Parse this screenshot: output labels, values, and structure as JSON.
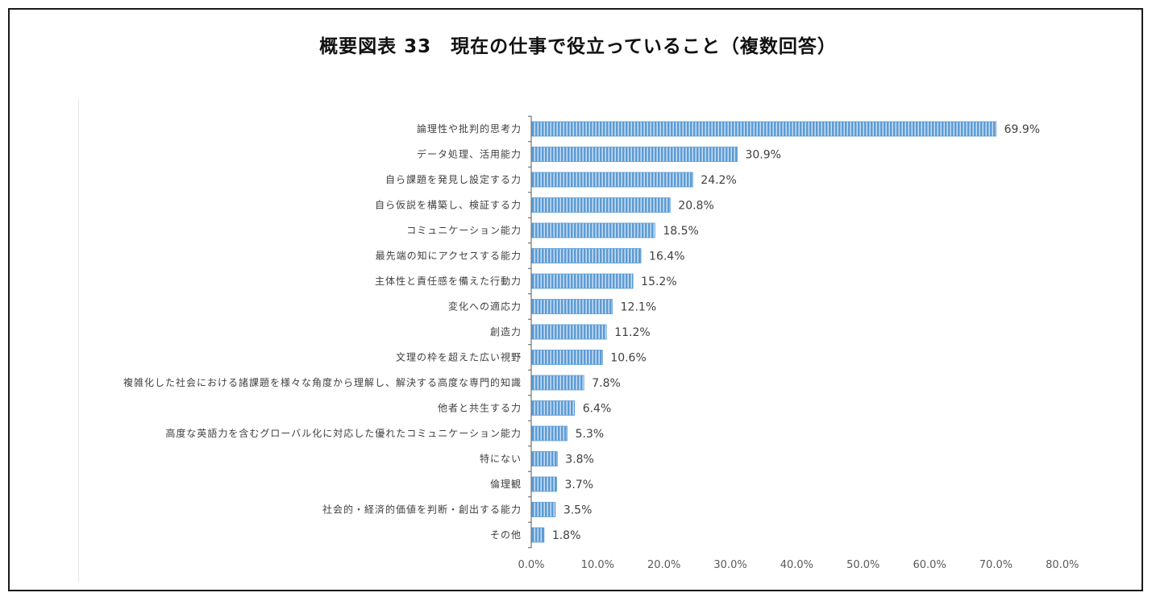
{
  "title": "概要図表 33　現在の仕事で役立っていること（複数回答）",
  "colors": {
    "bar": "#5b9bd5",
    "bar_stripe": "#ffffff",
    "axis": "#595959"
  },
  "chart_data": {
    "type": "bar",
    "orientation": "horizontal",
    "title": "概要図表 33　現在の仕事で役立っていること（複数回答）",
    "xlabel": "",
    "ylabel": "",
    "xlim": [
      0,
      80
    ],
    "xticks": [
      "0.0%",
      "10.0%",
      "20.0%",
      "30.0%",
      "40.0%",
      "50.0%",
      "60.0%",
      "70.0%",
      "80.0%"
    ],
    "grid": false,
    "categories": [
      "論理性や批判的思考力",
      "データ処理、活用能力",
      "自ら課題を発見し設定する力",
      "自ら仮説を構築し、検証する力",
      "コミュニケーション能力",
      "最先端の知にアクセスする能力",
      "主体性と責任感を備えた行動力",
      "変化への適応力",
      "創造力",
      "文理の枠を超えた広い視野",
      "複雑化した社会における諸課題を様々な角度から理解し、解決する高度な専門的知識",
      "他者と共生する力",
      "高度な英語力を含むグローバル化に対応した優れたコミュニケーション能力",
      "特にない",
      "倫理観",
      "社会的・経済的価値を判断・創出する能力",
      "その他"
    ],
    "values": [
      69.9,
      30.9,
      24.2,
      20.8,
      18.5,
      16.4,
      15.2,
      12.1,
      11.2,
      10.6,
      7.8,
      6.4,
      5.3,
      3.8,
      3.7,
      3.5,
      1.8
    ],
    "value_labels": [
      "69.9%",
      "30.9%",
      "24.2%",
      "20.8%",
      "18.5%",
      "16.4%",
      "15.2%",
      "12.1%",
      "11.2%",
      "10.6%",
      "7.8%",
      "6.4%",
      "5.3%",
      "3.8%",
      "3.7%",
      "3.5%",
      "1.8%"
    ]
  }
}
